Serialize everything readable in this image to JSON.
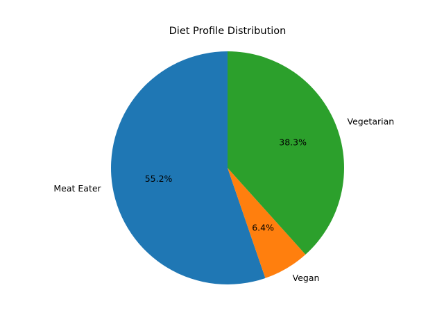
{
  "chart_data": {
    "type": "pie",
    "title": "Diet Profile Distribution",
    "start_angle_deg": 90,
    "direction": "counterclockwise",
    "legend": "none",
    "slices": [
      {
        "label": "Meat Eater",
        "value": 55.2,
        "pct_label": "55.2%",
        "color": "#1f77b4"
      },
      {
        "label": "Vegan",
        "value": 6.4,
        "pct_label": "6.4%",
        "color": "#ff7f0e"
      },
      {
        "label": "Vegetarian",
        "value": 38.3,
        "pct_label": "38.3%",
        "color": "#2ca02c"
      }
    ]
  }
}
